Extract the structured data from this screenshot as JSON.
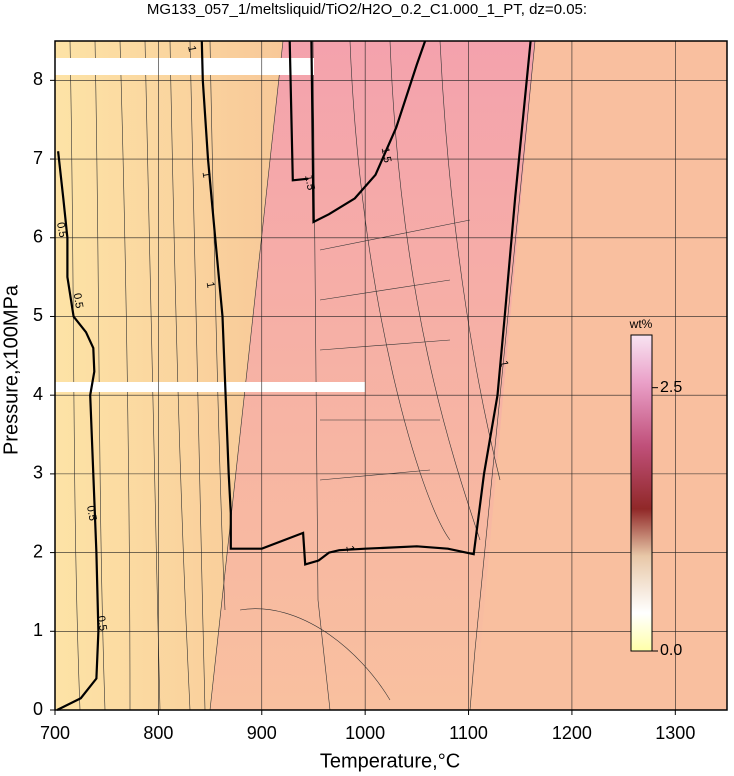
{
  "chart_data": {
    "type": "contour",
    "title": "MG133_057_1/meltsliquid/TiO2/H2O_0.2_C1.000_1_PT, dz=0.05:",
    "x_label": "Temperature,°C",
    "y_label": "Pressure,x100MPa",
    "xlim": [
      700,
      1350
    ],
    "ylim": [
      0,
      8.5
    ],
    "xticks": [
      700,
      800,
      900,
      1000,
      1100,
      1200,
      1300
    ],
    "yticks": [
      0,
      1,
      2,
      3,
      4,
      5,
      6,
      7,
      8
    ],
    "grid": true,
    "contours": [
      {
        "level": 0.5,
        "color": "#000000",
        "x": [
          703,
          708,
          712,
          712,
          718,
          730,
          737,
          738,
          734,
          737,
          740,
          742,
          740,
          725,
          702
        ],
        "y": [
          7.1,
          6.5,
          6.0,
          5.5,
          5.0,
          4.8,
          4.6,
          4.3,
          4.0,
          3.0,
          2.0,
          1.0,
          0.4,
          0.15,
          0.0
        ],
        "label_x": [
          706,
          722,
          735,
          745
        ],
        "label_y": [
          6.1,
          5.2,
          2.5,
          1.1
        ]
      },
      {
        "level": 1,
        "color": "#000000",
        "x": [
          842,
          843,
          848,
          855,
          862,
          865,
          868,
          870,
          870,
          900,
          940,
          942,
          955,
          965,
          975,
          1000,
          1050,
          1080,
          1105,
          1115,
          1128,
          1135,
          1145,
          1160,
          null,
          927,
          930,
          945
        ],
        "y": [
          8.5,
          8.0,
          7.0,
          6.0,
          5.0,
          4.0,
          3.0,
          2.5,
          2.05,
          2.05,
          2.25,
          1.85,
          1.9,
          2.0,
          2.03,
          2.05,
          2.08,
          2.05,
          1.98,
          3.0,
          4.0,
          5.0,
          6.5,
          8.5,
          null,
          8.5,
          6.73,
          6.75
        ],
        "label_x": [
          832,
          846,
          850,
          985,
          1134
        ],
        "label_y": [
          8.4,
          6.8,
          5.4,
          2.05,
          4.4
        ]
      },
      {
        "level": 1.5,
        "color": "#000000",
        "x": [
          948,
          949,
          950,
          965,
          990,
          1010,
          1030,
          1040,
          1050,
          1058
        ],
        "y": [
          8.5,
          7.5,
          6.2,
          6.3,
          6.5,
          6.8,
          7.4,
          7.8,
          8.2,
          8.5
        ],
        "label_x": [
          946,
          1020
        ],
        "label_y": [
          6.7,
          7.05
        ]
      }
    ],
    "colorbar": {
      "label": "wt%",
      "lim": [
        0,
        3.0
      ],
      "ticks": [
        {
          "value": 0,
          "label": "0.0"
        },
        2.5
      ]
    }
  }
}
